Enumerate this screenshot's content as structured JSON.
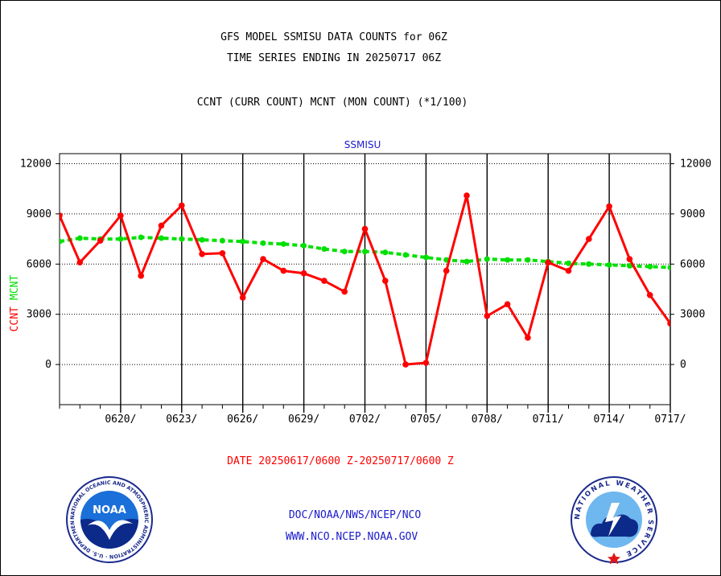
{
  "header": {
    "title_line1": "GFS MODEL SSMISU DATA COUNTS for 06Z",
    "title_line2": "TIME SERIES ENDING IN 20250717 06Z",
    "title_line3": "CCNT (CURR COUNT) MCNT (MON COUNT) (*1/100)"
  },
  "footer": {
    "date_range": "DATE 20250617/0600 Z-20250717/0600 Z",
    "link1": "DOC/NOAA/NWS/NCEP/NCO",
    "link2": "WWW.NCO.NCEP.NOAA.GOV"
  },
  "logos": {
    "noaa": {
      "name": "NOAA",
      "ring_text": "NATIONAL OCEANIC AND ATMOSPHERIC ADMINISTRATION · U.S. DEPARTMENT OF COMMERCE"
    },
    "nws": {
      "ring_text": "NATIONAL WEATHER SERVICE"
    }
  },
  "colors": {
    "ccnt": "#ff0000",
    "mcnt": "#00e000",
    "link": "#1a1acc",
    "plot_title": "#1a1acc"
  },
  "chart_data": {
    "type": "line",
    "title": "SSMISU",
    "ylabel_parts": [
      "CCNT",
      "MCNT"
    ],
    "xlabel": "",
    "x_ticks": [
      "0620/",
      "0623/",
      "0626/",
      "0629/",
      "0702/",
      "0705/",
      "0708/",
      "0711/",
      "0714/",
      "0717/"
    ],
    "y_ticks": [
      "0",
      "3000",
      "6000",
      "9000",
      "12000"
    ],
    "xlim": [
      "2025-06-17",
      "2025-07-17"
    ],
    "ylim": [
      -2400,
      12600
    ],
    "grid": true,
    "x": [
      "2025-06-17",
      "2025-06-18",
      "2025-06-19",
      "2025-06-20",
      "2025-06-21",
      "2025-06-22",
      "2025-06-23",
      "2025-06-24",
      "2025-06-25",
      "2025-06-26",
      "2025-06-27",
      "2025-06-28",
      "2025-06-29",
      "2025-06-30",
      "2025-07-01",
      "2025-07-02",
      "2025-07-03",
      "2025-07-04",
      "2025-07-05",
      "2025-07-06",
      "2025-07-07",
      "2025-07-08",
      "2025-07-09",
      "2025-07-10",
      "2025-07-11",
      "2025-07-12",
      "2025-07-13",
      "2025-07-14",
      "2025-07-15",
      "2025-07-16",
      "2025-07-17"
    ],
    "series": [
      {
        "name": "CCNT",
        "color": "#ff0000",
        "style": "solid",
        "values": [
          8900,
          6100,
          7400,
          8900,
          5300,
          8300,
          9500,
          6600,
          6650,
          4000,
          6300,
          5600,
          5450,
          5000,
          4350,
          8100,
          5000,
          0,
          100,
          5600,
          10100,
          2900,
          3600,
          1600,
          6100,
          5600,
          7500,
          9450,
          6300,
          4150,
          2450
        ]
      },
      {
        "name": "MCNT",
        "color": "#00e000",
        "style": "dashed",
        "values": [
          7350,
          7550,
          7500,
          7500,
          7600,
          7550,
          7500,
          7450,
          7400,
          7350,
          7250,
          7200,
          7100,
          6900,
          6750,
          6750,
          6700,
          6550,
          6400,
          6250,
          6150,
          6300,
          6250,
          6250,
          6150,
          6050,
          6000,
          5950,
          5900,
          5850,
          5800
        ]
      }
    ]
  }
}
